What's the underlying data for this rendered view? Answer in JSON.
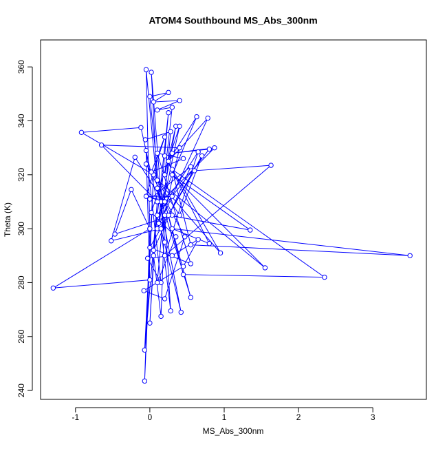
{
  "chart_data": {
    "type": "line",
    "markers": "circle-open",
    "title": "ATOM4 Southbound MS_Abs_300nm",
    "x_label": "MS_Abs_300nm",
    "y_label": "Theta (K)",
    "color": "#0000ff",
    "xlim": [
      -1.47,
      3.72
    ],
    "ylim": [
      236.7,
      370
    ],
    "xticks": [
      -1,
      0,
      1,
      2,
      3
    ],
    "yticks": [
      240,
      260,
      280,
      300,
      320,
      340,
      360
    ],
    "x": [
      0.05,
      -0.92,
      -0.12,
      0.1,
      -0.65,
      0.4,
      0.15,
      -0.52,
      -0.2,
      0.3,
      -0.47,
      -0.25,
      0.0,
      -0.05,
      0.1,
      0.02,
      0.2,
      0.0,
      0.25,
      0.05,
      0.4,
      0.1,
      0.3,
      0.2,
      0.35,
      0.1,
      0.78,
      0.25,
      0.63,
      0.15,
      0.87,
      0.3,
      0.8,
      0.1,
      0.65,
      0.2,
      1.63,
      0.6,
      0.25,
      1.35,
      0.3,
      1.55,
      0.1,
      0.95,
      0.2,
      0.8,
      0.3,
      3.5,
      0.55,
      0.3,
      2.35,
      0.45,
      0.2,
      0.55,
      0.1,
      0.42,
      0.15,
      0.28,
      0.2,
      0.15,
      0.05,
      0.0,
      0.1,
      -0.07,
      0.05,
      -0.07,
      0.0,
      -1.3,
      0.0,
      -0.05,
      0.15,
      -0.03,
      0.3,
      0.65,
      0.45,
      -0.08,
      0.2,
      0.47,
      -0.05,
      0.4,
      0.7,
      0.0,
      0.55,
      0.1,
      0.45,
      0.02,
      0.2,
      -0.05,
      0.3,
      0.0,
      0.55,
      0.05,
      0.25,
      0.12,
      0.4,
      0.02,
      0.35,
      0.1,
      0.28,
      -0.06
    ],
    "values": [
      320,
      335.7,
      337.5,
      310,
      331,
      330,
      300,
      295.5,
      326.5,
      305,
      298,
      314.5,
      300,
      359,
      315,
      358,
      295,
      349,
      350.5,
      347,
      347.5,
      344,
      345,
      320,
      338,
      300,
      341,
      325,
      341.5,
      310,
      330,
      328,
      329.5,
      305,
      328.5,
      290,
      323.5,
      321.5,
      305,
      299.5,
      320,
      285.5,
      318,
      291,
      327,
      294.5,
      300,
      290,
      294,
      322,
      282,
      283,
      310,
      274.5,
      315,
      269,
      300,
      269.5,
      305,
      267.5,
      290,
      265,
      310,
      255,
      320,
      243.5,
      300,
      278,
      281,
      329,
      280,
      289,
      290,
      296,
      286,
      277,
      274,
      297,
      324,
      305,
      327,
      293,
      287,
      328,
      326,
      321,
      334,
      312,
      312,
      311,
      323,
      292,
      343,
      302,
      338,
      306,
      297,
      280,
      336,
      333
    ]
  }
}
